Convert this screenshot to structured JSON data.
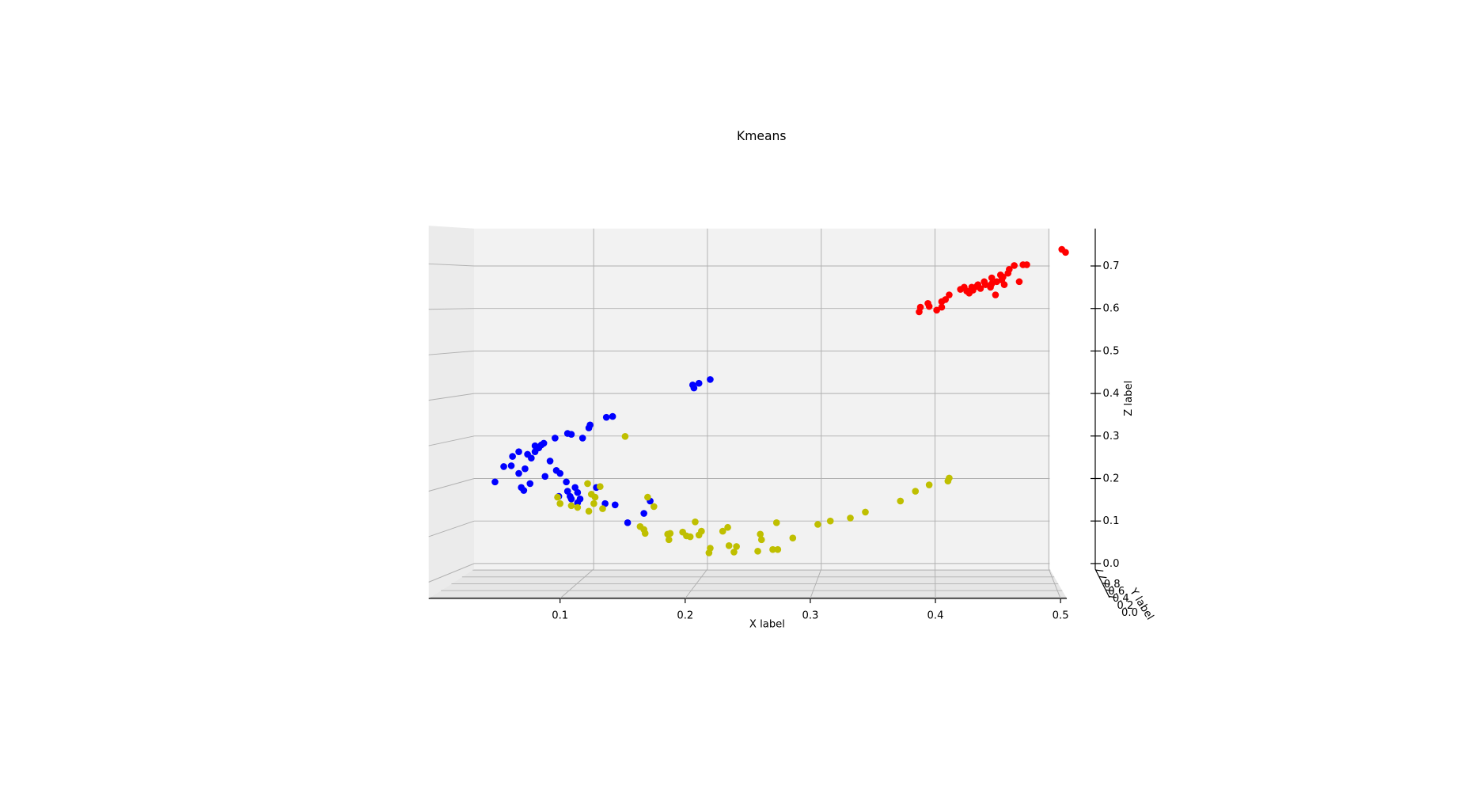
{
  "chart_data": {
    "type": "scatter3d",
    "title": "Kmeans",
    "xlabel": "X label",
    "ylabel": "Y label",
    "zlabel": "Z label",
    "xlim": [
      -0.005,
      0.505
    ],
    "xticks": [
      0.1,
      0.2,
      0.3,
      0.4,
      0.5
    ],
    "ylim": [
      -0.03,
      0.83
    ],
    "yticks": [
      {
        "value": 0,
        "label": "0.0"
      },
      0.2,
      0.4,
      0.6,
      0.8
    ],
    "zlim": [
      -0.013,
      0.788
    ],
    "zticks": [
      {
        "value": 0,
        "label": "0.0"
      },
      0.1,
      0.2,
      0.3,
      0.4,
      0.5,
      0.6,
      0.7
    ],
    "grid": true,
    "series": [
      {
        "color": "#0000ff",
        "x": [
          0.048,
          0.055,
          0.061,
          0.062,
          0.067,
          0.067,
          0.069,
          0.071,
          0.072,
          0.074,
          0.076,
          0.077,
          0.08,
          0.08,
          0.083,
          0.085,
          0.087,
          0.088,
          0.092,
          0.097,
          0.096,
          0.099,
          0.1,
          0.106,
          0.109,
          0.105,
          0.106,
          0.108,
          0.109,
          0.112,
          0.114,
          0.114,
          0.116,
          0.118,
          0.123,
          0.124,
          0.129,
          0.136,
          0.137,
          0.142,
          0.144,
          0.154,
          0.167,
          0.172,
          0.207,
          0.206,
          0.211,
          0.22
        ],
        "z": [
          0.192,
          0.228,
          0.23,
          0.252,
          0.263,
          0.212,
          0.179,
          0.172,
          0.223,
          0.257,
          0.188,
          0.248,
          0.277,
          0.263,
          0.272,
          0.279,
          0.283,
          0.205,
          0.241,
          0.219,
          0.295,
          0.158,
          0.212,
          0.306,
          0.304,
          0.192,
          0.17,
          0.158,
          0.152,
          0.179,
          0.143,
          0.167,
          0.152,
          0.295,
          0.319,
          0.326,
          0.179,
          0.141,
          0.344,
          0.346,
          0.138,
          0.096,
          0.118,
          0.147,
          0.413,
          0.42,
          0.424,
          0.433
        ]
      },
      {
        "color": "#bfbf00",
        "x": [
          0.152,
          0.098,
          0.1,
          0.109,
          0.114,
          0.122,
          0.123,
          0.125,
          0.127,
          0.128,
          0.132,
          0.134,
          0.164,
          0.167,
          0.168,
          0.17,
          0.175,
          0.186,
          0.187,
          0.188,
          0.198,
          0.201,
          0.204,
          0.208,
          0.211,
          0.213,
          0.219,
          0.22,
          0.23,
          0.234,
          0.235,
          0.239,
          0.241,
          0.258,
          0.26,
          0.261,
          0.27,
          0.273,
          0.274,
          0.286,
          0.306,
          0.316,
          0.332,
          0.344,
          0.372,
          0.384,
          0.395,
          0.41,
          0.411
        ],
        "z": [
          0.299,
          0.156,
          0.141,
          0.136,
          0.132,
          0.188,
          0.123,
          0.163,
          0.141,
          0.156,
          0.181,
          0.129,
          0.087,
          0.08,
          0.071,
          0.156,
          0.134,
          0.069,
          0.056,
          0.071,
          0.074,
          0.065,
          0.063,
          0.098,
          0.067,
          0.076,
          0.025,
          0.036,
          0.076,
          0.085,
          0.042,
          0.027,
          0.04,
          0.029,
          0.069,
          0.056,
          0.033,
          0.096,
          0.033,
          0.06,
          0.092,
          0.1,
          0.107,
          0.121,
          0.147,
          0.17,
          0.185,
          0.194,
          0.201
        ]
      },
      {
        "color": "#ff0000",
        "x": [
          0.387,
          0.388,
          0.394,
          0.395,
          0.401,
          0.405,
          0.405,
          0.408,
          0.411,
          0.42,
          0.425,
          0.427,
          0.429,
          0.43,
          0.433,
          0.434,
          0.436,
          0.439,
          0.44,
          0.444,
          0.445,
          0.448,
          0.449,
          0.452,
          0.453,
          0.455,
          0.458,
          0.459,
          0.463,
          0.467,
          0.47,
          0.473,
          0.501,
          0.504,
          0.445,
          0.454,
          0.423
        ],
        "z": [
          0.592,
          0.603,
          0.612,
          0.605,
          0.596,
          0.603,
          0.616,
          0.621,
          0.632,
          0.645,
          0.641,
          0.636,
          0.65,
          0.643,
          0.652,
          0.656,
          0.647,
          0.663,
          0.656,
          0.65,
          0.672,
          0.632,
          0.663,
          0.679,
          0.667,
          0.656,
          0.683,
          0.692,
          0.701,
          0.663,
          0.703,
          0.703,
          0.739,
          0.732,
          0.658,
          0.674,
          0.65
        ]
      }
    ]
  }
}
